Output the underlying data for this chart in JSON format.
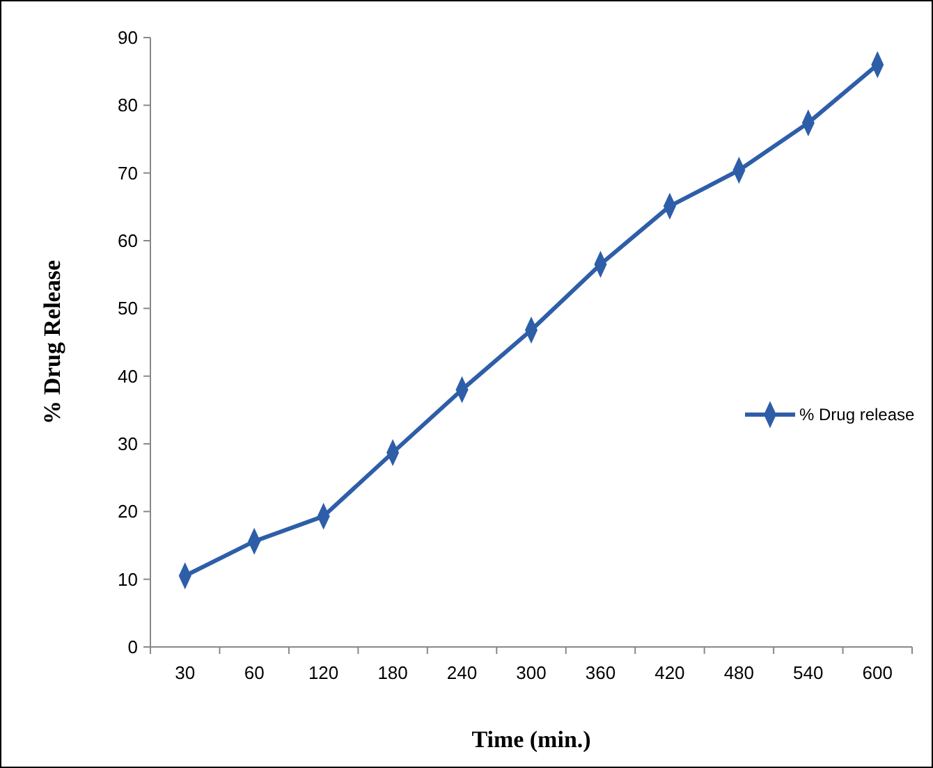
{
  "chart_data": {
    "type": "line",
    "xlabel": "Time (min.)",
    "ylabel": "% Drug Release",
    "categories": [
      "30",
      "60",
      "120",
      "180",
      "240",
      "300",
      "360",
      "420",
      "480",
      "540",
      "600"
    ],
    "series": [
      {
        "name": "% Drug release",
        "color": "#2e5ea8",
        "values": [
          10.5,
          15.6,
          19.3,
          28.7,
          38.0,
          46.8,
          56.5,
          65.1,
          70.4,
          77.4,
          86.0
        ]
      }
    ],
    "ylim": [
      0,
      90
    ],
    "yticks": [
      0,
      10,
      20,
      30,
      40,
      50,
      60,
      70,
      80,
      90
    ],
    "grid": false,
    "legend": "right",
    "marker": "diamond",
    "line_style": "solid"
  }
}
